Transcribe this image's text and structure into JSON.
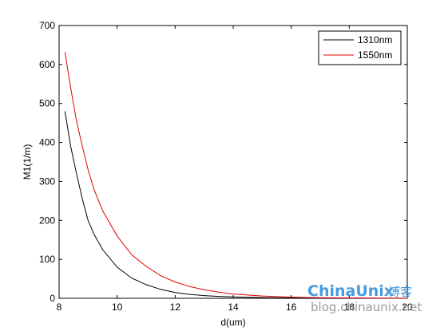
{
  "chart_data": {
    "type": "line",
    "title": "",
    "xlabel": "d(um)",
    "ylabel": "M1(1/m)",
    "xlim": [
      8,
      20
    ],
    "ylim": [
      0,
      700
    ],
    "xticks": [
      8,
      10,
      12,
      14,
      16,
      18,
      20
    ],
    "yticks": [
      0,
      100,
      200,
      300,
      400,
      500,
      600,
      700
    ],
    "grid": false,
    "legend_position": "top-right",
    "series": [
      {
        "name": "1310nm",
        "color": "#000000",
        "x": [
          8.2,
          8.4,
          8.6,
          8.8,
          9.0,
          9.2,
          9.5,
          10.0,
          10.5,
          11.0,
          11.5,
          12.0,
          12.5,
          13.0,
          13.5,
          14.0,
          15.0,
          16.0,
          17.0,
          18.0,
          19.0,
          20.0
        ],
        "y": [
          480,
          390,
          320,
          255,
          200,
          165,
          125,
          80,
          52,
          35,
          23,
          15,
          10,
          7,
          5,
          3.5,
          1.8,
          1.0,
          0.5,
          0.3,
          0.15,
          0.1
        ]
      },
      {
        "name": "1550nm",
        "color": "#e00000",
        "x": [
          8.2,
          8.4,
          8.6,
          8.8,
          9.0,
          9.2,
          9.5,
          10.0,
          10.5,
          11.0,
          11.5,
          12.0,
          12.5,
          13.0,
          13.5,
          14.0,
          15.0,
          16.0,
          17.0,
          18.0,
          19.0,
          20.0
        ],
        "y": [
          632,
          540,
          455,
          390,
          330,
          280,
          225,
          160,
          112,
          82,
          58,
          42,
          30,
          22,
          16,
          11,
          6,
          3,
          1.7,
          1.0,
          0.6,
          0.3
        ]
      }
    ]
  },
  "watermark": {
    "brand": "ChinaUnix",
    "brand_cn": "博客",
    "url": "blog.chinaunix.net"
  }
}
